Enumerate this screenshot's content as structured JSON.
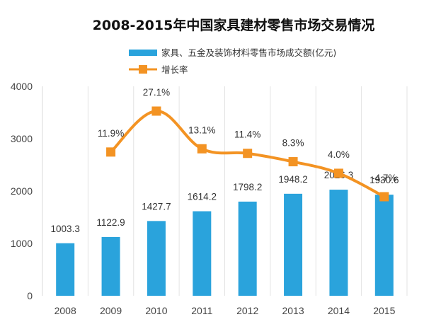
{
  "chart_data": {
    "type": "bar",
    "title": "2008-2015年中国家具建材零售市场交易情况",
    "categories": [
      "2008",
      "2009",
      "2010",
      "2011",
      "2012",
      "2013",
      "2014",
      "2015"
    ],
    "series": [
      {
        "name": "家具、五金及装饰材料零售市场成交额(亿元)",
        "type": "bar",
        "axis": "left",
        "values": [
          1003.3,
          1122.9,
          1427.7,
          1614.2,
          1798.2,
          1948.2,
          2026.3,
          1930.6
        ],
        "labels": [
          "1003.3",
          "1122.9",
          "1427.7",
          "1614.2",
          "1798.2",
          "1948.2",
          "2026.3",
          "1930.6"
        ],
        "color": "#2aa3dc"
      },
      {
        "name": "增长率",
        "type": "line",
        "axis": "right",
        "values": [
          null,
          11.9,
          27.1,
          13.1,
          11.4,
          8.3,
          4.0,
          -4.7
        ],
        "labels": [
          "",
          "11.9%",
          "27.1%",
          "13.1%",
          "11.4%",
          "8.3%",
          "4.0%",
          "-4.7%"
        ],
        "color": "#f39323",
        "smooth": true,
        "marker": "square"
      }
    ],
    "yaxis": {
      "ylim": [
        0,
        4000
      ],
      "ticks": [
        "0",
        "1000",
        "2000",
        "3000",
        "4000"
      ]
    },
    "grid": true,
    "legend": "top-center"
  }
}
